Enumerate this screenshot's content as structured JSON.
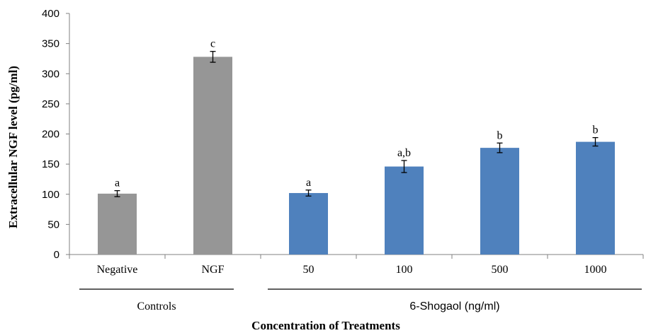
{
  "chart_data": {
    "type": "bar",
    "xlabel": "Concentration of Treatments",
    "ylabel": "Extracellular NGF level (pg/ml)",
    "ylim": [
      0,
      400
    ],
    "yticks": [
      0,
      50,
      100,
      150,
      200,
      250,
      300,
      350,
      400
    ],
    "grid": false,
    "categories": [
      "Negative",
      "NGF",
      "50",
      "100",
      "500",
      "1000"
    ],
    "values": [
      101,
      328,
      102,
      146,
      177,
      187
    ],
    "errors": [
      5,
      9,
      5,
      10,
      8,
      7
    ],
    "significance_labels": [
      "a",
      "c",
      "a",
      "a,b",
      "b",
      "b"
    ],
    "groups": [
      {
        "label": "Controls",
        "categories": [
          "Negative",
          "NGF"
        ],
        "color": "#969696"
      },
      {
        "label": "6-Shogaol (ng/ml)",
        "categories": [
          "50",
          "100",
          "500",
          "1000"
        ],
        "color": "#4f81bd"
      }
    ]
  }
}
